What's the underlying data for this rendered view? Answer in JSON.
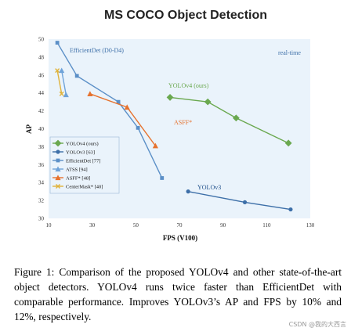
{
  "chart_data": {
    "type": "line",
    "title": "MS COCO Object Detection",
    "xlabel": "FPS (V100)",
    "ylabel": "AP",
    "xlim": [
      10,
      130
    ],
    "ylim": [
      30,
      50
    ],
    "xticks": [
      10,
      30,
      50,
      70,
      90,
      110,
      130
    ],
    "yticks": [
      30,
      32,
      34,
      36,
      38,
      40,
      42,
      44,
      46,
      48,
      50
    ],
    "grid": false,
    "background": "#eaf3fb",
    "annotations": {
      "efficientdet": "EfficientDet (D0-D4)",
      "realtime": "real-time",
      "yolov4": "YOLOv4 (ours)",
      "asff": "ASFF*",
      "yolov3": "YOLOv3"
    },
    "legend_position": "middle-left",
    "legend": [
      "YOLOv4 (ours)",
      "YOLOv3 [63]",
      "EfficientDet [77]",
      "ATSS [94]",
      "ASFF* [48]",
      "CenterMask* [40]"
    ],
    "series": [
      {
        "name": "YOLOv4 (ours)",
        "color": "#6aa84f",
        "marker": "diamond",
        "x": [
          65.7,
          83,
          96,
          120
        ],
        "y": [
          43.5,
          43.0,
          41.2,
          38.4
        ]
      },
      {
        "name": "YOLOv3 [63]",
        "color": "#3d6fa8",
        "marker": "circle",
        "x": [
          74,
          100,
          121
        ],
        "y": [
          33.0,
          31.8,
          31.0
        ]
      },
      {
        "name": "EfficientDet [77]",
        "color": "#5b8fc7",
        "marker": "square",
        "x": [
          14,
          23,
          42,
          51,
          62
        ],
        "y": [
          49.6,
          45.9,
          43.0,
          40.1,
          34.5
        ]
      },
      {
        "name": "ATSS [94]",
        "color": "#6fa3d9",
        "marker": "triangle",
        "x": [
          16,
          18
        ],
        "y": [
          46.5,
          43.8
        ]
      },
      {
        "name": "ASFF* [48]",
        "color": "#e6722e",
        "marker": "triangle",
        "x": [
          29,
          46,
          59
        ],
        "y": [
          43.9,
          42.4,
          38.1
        ]
      },
      {
        "name": "CenterMask* [40]",
        "color": "#e0b33c",
        "marker": "x",
        "x": [
          14,
          16
        ],
        "y": [
          46.5,
          43.9
        ]
      }
    ]
  },
  "caption": "Figure 1: Comparison of the proposed YOLOv4 and other state-of-the-art object detectors. YOLOv4 runs twice faster than EfficientDet with comparable performance. Improves YOLOv3’s AP and FPS by 10% and 12%, respectively.",
  "watermark": "CSDN @我的大西言"
}
